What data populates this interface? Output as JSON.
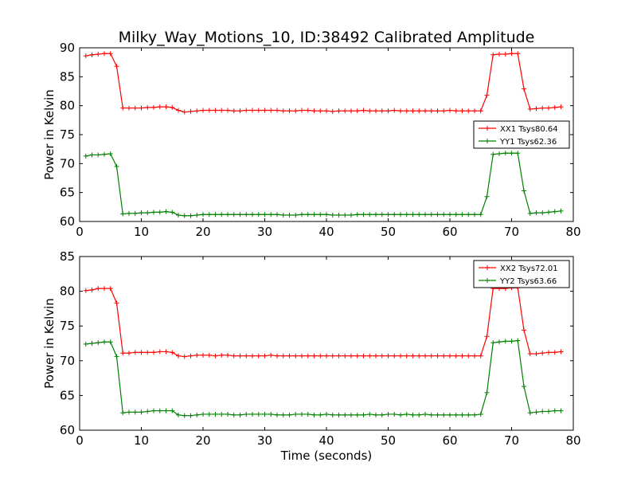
{
  "chart_data": {
    "title": "Milky_Way_Motions_10, ID:38492 Calibrated Amplitude",
    "xlabel": "Time (seconds)",
    "x": [
      1,
      2,
      3,
      4,
      5,
      6,
      7,
      8,
      9,
      10,
      11,
      12,
      13,
      14,
      15,
      16,
      17,
      18,
      19,
      20,
      21,
      22,
      23,
      24,
      25,
      26,
      27,
      28,
      29,
      30,
      31,
      32,
      33,
      34,
      35,
      36,
      37,
      38,
      39,
      40,
      41,
      42,
      43,
      44,
      45,
      46,
      47,
      48,
      49,
      50,
      51,
      52,
      53,
      54,
      55,
      56,
      57,
      58,
      59,
      60,
      61,
      62,
      63,
      64,
      65,
      66,
      67,
      68,
      69,
      70,
      71,
      72,
      73,
      74,
      75,
      76,
      77,
      78
    ],
    "panels": [
      {
        "type": "line",
        "ylabel": "Power in Kelvin",
        "xlim": [
          0,
          80
        ],
        "ylim": [
          60,
          90
        ],
        "xticks": [
          "0",
          "10",
          "20",
          "30",
          "40",
          "50",
          "60",
          "70",
          "80"
        ],
        "yticks": [
          "60",
          "65",
          "70",
          "75",
          "80",
          "85",
          "90"
        ],
        "legend_position": "center-right",
        "series": [
          {
            "name": "XX1 Tsys80.64",
            "color": "#ff0000",
            "values": [
              88.6,
              88.8,
              88.9,
              89.0,
              89.0,
              86.8,
              79.6,
              79.6,
              79.6,
              79.6,
              79.7,
              79.7,
              79.8,
              79.8,
              79.7,
              79.2,
              78.9,
              79.0,
              79.1,
              79.2,
              79.2,
              79.2,
              79.2,
              79.2,
              79.1,
              79.1,
              79.2,
              79.2,
              79.2,
              79.2,
              79.2,
              79.2,
              79.1,
              79.1,
              79.1,
              79.2,
              79.2,
              79.1,
              79.1,
              79.1,
              79.0,
              79.1,
              79.1,
              79.1,
              79.1,
              79.2,
              79.1,
              79.1,
              79.1,
              79.1,
              79.2,
              79.1,
              79.1,
              79.1,
              79.1,
              79.1,
              79.1,
              79.1,
              79.1,
              79.2,
              79.1,
              79.1,
              79.1,
              79.1,
              79.1,
              81.8,
              88.8,
              88.9,
              88.9,
              89.0,
              89.0,
              82.9,
              79.4,
              79.5,
              79.6,
              79.6,
              79.7,
              79.8
            ]
          },
          {
            "name": "YY1 Tsys62.36",
            "color": "#008000",
            "values": [
              71.3,
              71.5,
              71.5,
              71.6,
              71.7,
              69.5,
              61.3,
              61.4,
              61.4,
              61.5,
              61.5,
              61.6,
              61.6,
              61.7,
              61.6,
              61.1,
              61.0,
              61.0,
              61.1,
              61.2,
              61.2,
              61.2,
              61.2,
              61.2,
              61.2,
              61.2,
              61.2,
              61.2,
              61.2,
              61.2,
              61.2,
              61.2,
              61.1,
              61.1,
              61.1,
              61.2,
              61.2,
              61.2,
              61.2,
              61.2,
              61.1,
              61.1,
              61.1,
              61.1,
              61.2,
              61.2,
              61.2,
              61.2,
              61.2,
              61.2,
              61.2,
              61.2,
              61.2,
              61.2,
              61.2,
              61.2,
              61.2,
              61.2,
              61.2,
              61.2,
              61.2,
              61.2,
              61.2,
              61.2,
              61.2,
              64.3,
              71.6,
              71.7,
              71.8,
              71.8,
              71.8,
              65.3,
              61.4,
              61.5,
              61.5,
              61.6,
              61.7,
              61.8
            ]
          }
        ]
      },
      {
        "type": "line",
        "ylabel": "Power in Kelvin",
        "xlabel": "Time (seconds)",
        "xlim": [
          0,
          80
        ],
        "ylim": [
          60,
          85
        ],
        "xticks": [
          "0",
          "10",
          "20",
          "30",
          "40",
          "50",
          "60",
          "70",
          "80"
        ],
        "yticks": [
          "60",
          "65",
          "70",
          "75",
          "80",
          "85"
        ],
        "legend_position": "upper-right",
        "series": [
          {
            "name": "XX2 Tsys72.01",
            "color": "#ff0000",
            "values": [
              80.1,
              80.2,
              80.4,
              80.4,
              80.4,
              78.3,
              71.1,
              71.1,
              71.2,
              71.2,
              71.2,
              71.2,
              71.3,
              71.3,
              71.2,
              70.7,
              70.6,
              70.7,
              70.8,
              70.8,
              70.8,
              70.7,
              70.8,
              70.8,
              70.7,
              70.7,
              70.7,
              70.7,
              70.7,
              70.7,
              70.8,
              70.7,
              70.7,
              70.7,
              70.7,
              70.7,
              70.7,
              70.7,
              70.7,
              70.7,
              70.7,
              70.7,
              70.7,
              70.7,
              70.7,
              70.7,
              70.7,
              70.7,
              70.7,
              70.7,
              70.7,
              70.7,
              70.7,
              70.7,
              70.7,
              70.7,
              70.7,
              70.7,
              70.7,
              70.7,
              70.7,
              70.7,
              70.7,
              70.7,
              70.7,
              73.5,
              80.4,
              80.4,
              80.4,
              80.5,
              80.5,
              74.4,
              71.0,
              71.0,
              71.1,
              71.2,
              71.2,
              71.3
            ]
          },
          {
            "name": "YY2 Tsys63.66",
            "color": "#008000",
            "values": [
              72.4,
              72.5,
              72.6,
              72.7,
              72.7,
              70.6,
              62.5,
              62.6,
              62.6,
              62.6,
              62.7,
              62.8,
              62.8,
              62.8,
              62.8,
              62.2,
              62.1,
              62.1,
              62.2,
              62.3,
              62.3,
              62.3,
              62.3,
              62.3,
              62.2,
              62.2,
              62.3,
              62.3,
              62.3,
              62.3,
              62.3,
              62.2,
              62.2,
              62.2,
              62.3,
              62.3,
              62.3,
              62.2,
              62.2,
              62.3,
              62.2,
              62.2,
              62.2,
              62.2,
              62.2,
              62.2,
              62.3,
              62.2,
              62.2,
              62.3,
              62.3,
              62.2,
              62.3,
              62.2,
              62.2,
              62.3,
              62.2,
              62.2,
              62.2,
              62.2,
              62.2,
              62.2,
              62.2,
              62.2,
              62.3,
              65.4,
              72.6,
              72.7,
              72.8,
              72.8,
              72.9,
              66.3,
              62.5,
              62.6,
              62.7,
              62.7,
              62.8,
              62.8
            ]
          }
        ]
      }
    ]
  }
}
